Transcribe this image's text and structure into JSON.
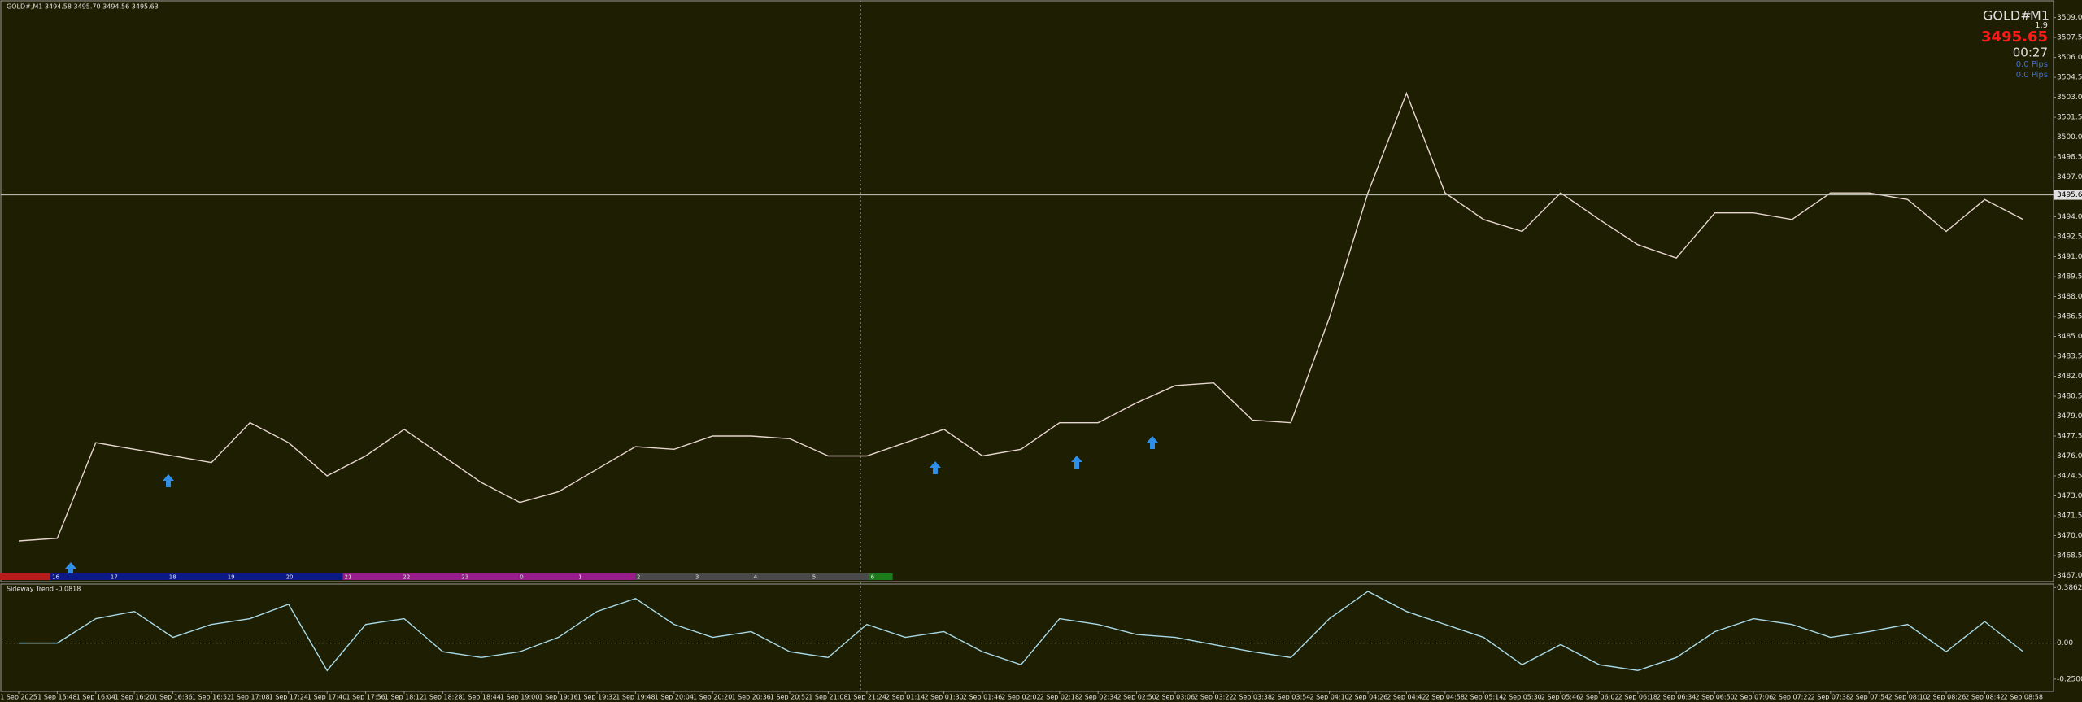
{
  "chart_data": [
    {
      "type": "line",
      "title": "GOLD#,M1  3494.58 3495.70 3494.56 3495.63",
      "x": [
        "1 Sep 2025",
        "1 Sep 15:48",
        "1 Sep 16:04",
        "1 Sep 16:20",
        "1 Sep 16:36",
        "1 Sep 16:52",
        "1 Sep 17:08",
        "1 Sep 17:24",
        "1 Sep 17:40",
        "1 Sep 17:56",
        "1 Sep 18:12",
        "1 Sep 18:28",
        "1 Sep 18:44",
        "1 Sep 19:00",
        "1 Sep 19:16",
        "1 Sep 19:32",
        "1 Sep 19:48",
        "1 Sep 20:04",
        "1 Sep 20:20",
        "1 Sep 20:36",
        "1 Sep 20:52",
        "1 Sep 21:08",
        "1 Sep 21:24",
        "2 Sep 01:14",
        "2 Sep 01:30",
        "2 Sep 01:46",
        "2 Sep 02:02",
        "2 Sep 02:18",
        "2 Sep 02:34",
        "2 Sep 02:50",
        "2 Sep 03:06",
        "2 Sep 03:22",
        "2 Sep 03:38",
        "2 Sep 03:54",
        "2 Sep 04:10",
        "2 Sep 04:26",
        "2 Sep 04:42",
        "2 Sep 04:58",
        "2 Sep 05:14",
        "2 Sep 05:30",
        "2 Sep 05:46",
        "2 Sep 06:02",
        "2 Sep 06:18",
        "2 Sep 06:34",
        "2 Sep 06:50",
        "2 Sep 07:06",
        "2 Sep 07:22",
        "2 Sep 07:38",
        "2 Sep 07:54",
        "2 Sep 08:10",
        "2 Sep 08:26",
        "2 Sep 08:42",
        "2 Sep 08:58"
      ],
      "values": [
        3469.6,
        3469.8,
        3477.0,
        3476.5,
        3476.0,
        3475.5,
        3478.5,
        3477.0,
        3474.5,
        3476.0,
        3478.0,
        3476.0,
        3474.0,
        3472.5,
        3473.3,
        3475.0,
        3476.7,
        3476.5,
        3477.5,
        3477.5,
        3477.3,
        3476.0,
        3476.0,
        3477.0,
        3478.0,
        3476.0,
        3476.5,
        3478.5,
        3478.5,
        3480.0,
        3481.3,
        3481.5,
        3478.7,
        3478.5,
        3486.4,
        3495.8,
        3503.3,
        3495.8,
        3493.8,
        3492.9,
        3495.8,
        3493.8,
        3491.9,
        3490.9,
        3494.3,
        3494.3,
        3493.8,
        3495.8,
        3495.8,
        3495.3,
        3492.9,
        3495.3,
        3493.8
      ],
      "color": "#e6d6cf",
      "ylim": [
        3466.6,
        3510.2
      ],
      "yticks": [
        {
          "value": 3467,
          "label": "3467.00"
        },
        {
          "value": 3468.5,
          "label": "3468.50"
        },
        {
          "value": 3470,
          "label": "3470.00"
        },
        {
          "value": 3471.5,
          "label": "3471.50"
        },
        {
          "value": 3473,
          "label": "3473.00"
        },
        {
          "value": 3474.5,
          "label": "3474.50"
        },
        {
          "value": 3476,
          "label": "3476.00"
        },
        {
          "value": 3477.5,
          "label": "3477.50"
        },
        {
          "value": 3479,
          "label": "3479.00"
        },
        {
          "value": 3480.5,
          "label": "3480.50"
        },
        {
          "value": 3482,
          "label": "3482.00"
        },
        {
          "value": 3483.5,
          "label": "3483.50"
        },
        {
          "value": 3485,
          "label": "3485.00"
        },
        {
          "value": 3486.5,
          "label": "3486.50"
        },
        {
          "value": 3488,
          "label": "3488.00"
        },
        {
          "value": 3489.5,
          "label": "3489.50"
        },
        {
          "value": 3491,
          "label": "3491.00"
        },
        {
          "value": 3492.5,
          "label": "3492.50"
        },
        {
          "value": 3494,
          "label": "3494.00"
        },
        {
          "value": 3495.5,
          "label": "3495.50"
        },
        {
          "value": 3497,
          "label": "3497.00"
        },
        {
          "value": 3498.5,
          "label": "3498.50"
        },
        {
          "value": 3500,
          "label": "3500.00"
        },
        {
          "value": 3501.5,
          "label": "3501.50"
        },
        {
          "value": 3503,
          "label": "3503.00"
        },
        {
          "value": 3504.5,
          "label": "3504.50"
        },
        {
          "value": 3506,
          "label": "3506.00"
        },
        {
          "value": 3507.5,
          "label": "3507.50"
        },
        {
          "value": 3509,
          "label": "3509.00"
        }
      ],
      "current_price": 3495.65,
      "sessions": [
        {
          "label": "16",
          "color": "#0b1a86"
        },
        {
          "label": "17",
          "color": "#0b1a86"
        },
        {
          "label": "18",
          "color": "#0b1a86"
        },
        {
          "label": "19",
          "color": "#0b1a86"
        },
        {
          "label": "20",
          "color": "#0b1a86"
        },
        {
          "label": "21",
          "color": "#981c8c"
        },
        {
          "label": "22",
          "color": "#981c8c"
        },
        {
          "label": "23",
          "color": "#981c8c"
        },
        {
          "label": "0",
          "color": "#981c8c"
        },
        {
          "label": "1",
          "color": "#981c8c"
        },
        {
          "label": "2",
          "color": "#4a4a4a"
        },
        {
          "label": "3",
          "color": "#4a4a4a"
        },
        {
          "label": "4",
          "color": "#4a4a4a"
        },
        {
          "label": "5",
          "color": "#4a4a4a"
        },
        {
          "label": "6",
          "color": "#1c7c1c"
        }
      ]
    },
    {
      "type": "line",
      "title": "Sideway Trend -0.0818",
      "values": [
        0,
        0,
        0.17,
        0.22,
        0.04,
        0.13,
        0.17,
        0.27,
        -0.19,
        0.13,
        0.17,
        -0.06,
        -0.1,
        -0.06,
        0.04,
        0.22,
        0.31,
        0.13,
        0.04,
        0.08,
        -0.06,
        -0.1,
        0.13,
        0.04,
        0.08,
        -0.06,
        -0.15,
        0.17,
        0.13,
        0.06,
        0.04,
        -0.01,
        -0.06,
        -0.1,
        0.17,
        0.36,
        0.22,
        0.13,
        0.04,
        -0.15,
        -0.01,
        -0.15,
        -0.19,
        -0.1,
        0.08,
        0.17,
        0.13,
        0.04,
        0.08,
        0.13,
        -0.06,
        0.15,
        -0.06
      ],
      "color": "#a9d9e6",
      "ylim": [
        -0.33,
        0.405
      ],
      "yticks": [
        {
          "value": -0.25,
          "label": "-0.2500"
        },
        {
          "value": 0,
          "label": "0.00"
        },
        0.3862
      ]
    }
  ],
  "info": {
    "symbol": "GOLD#",
    "timeframe": "M1",
    "spread": 1.9,
    "timer": "00:27",
    "pips": [
      "0.0 Pips",
      "0.0 Pips"
    ]
  }
}
